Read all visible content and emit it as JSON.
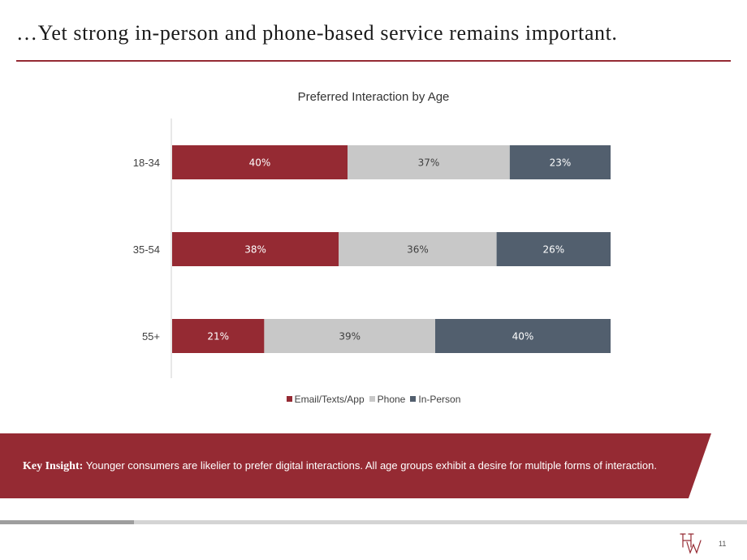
{
  "slide": {
    "title": "…Yet strong in-person and phone-based service remains important.",
    "page_number": "11"
  },
  "colors": {
    "accent": "#952a33",
    "email": "#952a33",
    "phone": "#c8c8c8",
    "in_person": "#525f6e"
  },
  "chart_data": {
    "type": "bar",
    "orientation": "horizontal",
    "stacked": true,
    "title": "Preferred Interaction by Age",
    "categories": [
      "18-34",
      "35-54",
      "55+"
    ],
    "series": [
      {
        "name": "Email/Texts/App",
        "values": [
          40,
          38,
          21
        ],
        "labels": [
          "40%",
          "38%",
          "21%"
        ],
        "color": "#952a33",
        "label_color": "#ffffff"
      },
      {
        "name": "Phone",
        "values": [
          37,
          36,
          39
        ],
        "labels": [
          "37%",
          "36%",
          "39%"
        ],
        "color": "#c8c8c8",
        "label_color": "#404040"
      },
      {
        "name": "In-Person",
        "values": [
          23,
          26,
          40
        ],
        "labels": [
          "23%",
          "26%",
          "40%"
        ],
        "color": "#525f6e",
        "label_color": "#ffffff"
      }
    ],
    "value_unit": "%",
    "xlim": [
      0,
      100
    ],
    "grid": false,
    "legend_position": "bottom"
  },
  "insight": {
    "label": "Key Insight:",
    "text": "Younger consumers are likelier to prefer digital interactions. All age groups exhibit a desire for multiple forms of interaction."
  },
  "logo": {
    "icon": "hw-monogram-logo",
    "text": "HW"
  }
}
